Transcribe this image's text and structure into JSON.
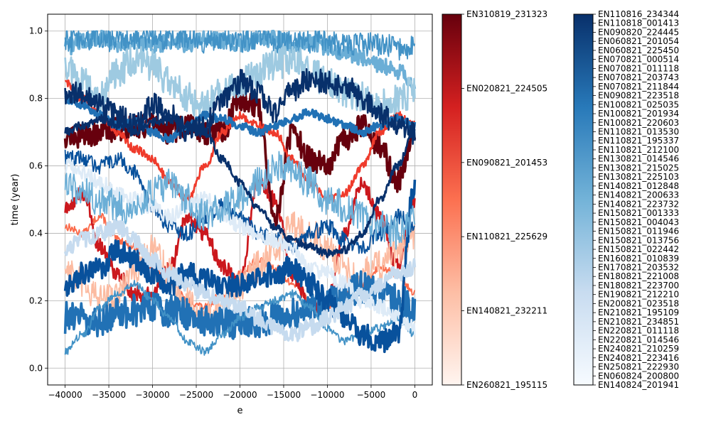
{
  "chart_data": {
    "type": "line",
    "xlabel": "e",
    "ylabel": "time (year)",
    "xlim": [
      -42000,
      2000
    ],
    "ylim": [
      -0.05,
      1.05
    ],
    "x_ticks": [
      -40000,
      -35000,
      -30000,
      -25000,
      -20000,
      -15000,
      -10000,
      -5000,
      0
    ],
    "x_tick_labels": [
      "−40000",
      "−35000",
      "−30000",
      "−25000",
      "−20000",
      "−15000",
      "−10000",
      "−5000",
      "0"
    ],
    "y_ticks": [
      0.0,
      0.2,
      0.4,
      0.6,
      0.8,
      1.0
    ],
    "y_tick_labels": [
      "0.0",
      "0.2",
      "0.4",
      "0.6",
      "0.8",
      "1.0"
    ],
    "grid": true,
    "x_range": [
      -40000,
      0
    ],
    "series": [
      {
        "color": "#fb6a4a",
        "values": [
          0.42,
          0.4,
          0.45,
          0.38,
          0.36,
          0.3,
          0.26,
          0.2,
          0.18,
          0.22,
          0.28,
          0.32,
          0.3,
          0.25,
          0.2,
          0.18,
          0.22,
          0.25,
          0.3,
          0.28,
          0.22
        ]
      },
      {
        "color": "#cb181d",
        "values": [
          0.47,
          0.52,
          0.36,
          0.28,
          0.22,
          0.22,
          0.3,
          0.45,
          0.4,
          0.3,
          0.25,
          0.55,
          0.5,
          0.28,
          0.18,
          0.2,
          0.4,
          0.55,
          0.45,
          0.3,
          0.5
        ]
      },
      {
        "color": "#67000d",
        "values": [
          0.69,
          0.69,
          0.7,
          0.71,
          0.72,
          0.72,
          0.7,
          0.72,
          0.7,
          0.7,
          0.8,
          0.78,
          0.45,
          0.7,
          0.62,
          0.6,
          0.68,
          0.72,
          0.66,
          0.55,
          0.7
        ]
      },
      {
        "color": "#fcbba1",
        "values": [
          0.3,
          0.25,
          0.2,
          0.22,
          0.3,
          0.35,
          0.28,
          0.2,
          0.15,
          0.18,
          0.25,
          0.3,
          0.35,
          0.42,
          0.4,
          0.35,
          0.3,
          0.28,
          0.3,
          0.35,
          0.4
        ]
      },
      {
        "color": "#ef3b2c",
        "values": [
          0.85,
          0.8,
          0.75,
          0.7,
          0.65,
          0.62,
          0.55,
          0.5,
          0.6,
          0.7,
          0.75,
          0.72,
          0.7,
          0.62,
          0.55,
          0.5,
          0.52,
          0.6,
          0.7,
          0.75,
          0.72
        ]
      },
      {
        "color": "#6baed6",
        "values": [
          0.95,
          0.97,
          0.98,
          0.96,
          0.97,
          0.95,
          0.97,
          0.96,
          0.98,
          0.97,
          0.96,
          0.97,
          0.98,
          0.96,
          0.97,
          0.95,
          0.93,
          0.92,
          0.9,
          0.88,
          0.85
        ]
      },
      {
        "color": "#4292c6",
        "values": [
          0.97,
          0.98,
          0.98,
          0.97,
          0.98,
          0.98,
          0.98,
          0.98,
          0.97,
          0.97,
          0.97,
          0.98,
          0.97,
          0.97,
          0.97,
          0.97,
          0.96,
          0.96,
          0.96,
          0.95,
          0.95
        ]
      },
      {
        "color": "#9ecae1",
        "values": [
          0.9,
          0.85,
          0.8,
          0.88,
          0.92,
          0.9,
          0.85,
          0.8,
          0.78,
          0.82,
          0.85,
          0.88,
          0.9,
          0.92,
          0.88,
          0.85,
          0.82,
          0.8,
          0.78,
          0.8,
          0.82
        ]
      },
      {
        "color": "#2171b5",
        "values": [
          0.8,
          0.78,
          0.75,
          0.72,
          0.73,
          0.7,
          0.68,
          0.72,
          0.75,
          0.74,
          0.72,
          0.7,
          0.72,
          0.74,
          0.76,
          0.74,
          0.72,
          0.7,
          0.72,
          0.74,
          0.72
        ]
      },
      {
        "color": "#08519c",
        "values": [
          0.63,
          0.62,
          0.6,
          0.62,
          0.58,
          0.48,
          0.42,
          0.4,
          0.45,
          0.48,
          0.45,
          0.4,
          0.38,
          0.36,
          0.4,
          0.42,
          0.38,
          0.36,
          0.4,
          0.45,
          0.42
        ]
      },
      {
        "color": "#08306b",
        "values": [
          0.8,
          0.82,
          0.78,
          0.75,
          0.72,
          0.78,
          0.75,
          0.7,
          0.72,
          0.8,
          0.85,
          0.82,
          0.76,
          0.82,
          0.86,
          0.85,
          0.84,
          0.8,
          0.75,
          0.72,
          0.7
        ]
      },
      {
        "color": "#2171b5",
        "values": [
          0.15,
          0.15,
          0.14,
          0.16,
          0.17,
          0.18,
          0.17,
          0.16,
          0.14,
          0.14,
          0.13,
          0.14,
          0.15,
          0.16,
          0.18,
          0.2,
          0.22,
          0.24,
          0.22,
          0.2,
          0.18
        ]
      },
      {
        "color": "#4292c6",
        "values": [
          0.05,
          0.1,
          0.18,
          0.22,
          0.25,
          0.2,
          0.15,
          0.08,
          0.05,
          0.1,
          0.15,
          0.18,
          0.2,
          0.22,
          0.18,
          0.12,
          0.08,
          0.1,
          0.12,
          0.15,
          0.1
        ]
      },
      {
        "color": "#deebf7",
        "values": [
          0.6,
          0.58,
          0.55,
          0.52,
          0.5,
          0.48,
          0.45,
          0.48,
          0.5,
          0.46,
          0.42,
          0.4,
          0.38,
          0.35,
          0.3,
          0.28,
          0.25,
          0.2,
          0.18,
          0.15,
          0.12
        ]
      },
      {
        "color": "#08519c",
        "values": [
          0.25,
          0.28,
          0.3,
          0.35,
          0.32,
          0.28,
          0.25,
          0.28,
          0.26,
          0.24,
          0.25,
          0.27,
          0.28,
          0.3,
          0.25,
          0.2,
          0.15,
          0.1,
          0.08,
          0.1,
          0.55
        ]
      },
      {
        "color": "#6baed6",
        "values": [
          0.55,
          0.52,
          0.5,
          0.48,
          0.46,
          0.52,
          0.55,
          0.5,
          0.45,
          0.48,
          0.5,
          0.55,
          0.6,
          0.58,
          0.55,
          0.5,
          0.48,
          0.45,
          0.42,
          0.4,
          0.45
        ]
      },
      {
        "color": "#08306b",
        "values": [
          0.7,
          0.72,
          0.74,
          0.72,
          0.7,
          0.73,
          0.74,
          0.72,
          0.7,
          0.62,
          0.55,
          0.48,
          0.42,
          0.38,
          0.36,
          0.34,
          0.35,
          0.4,
          0.5,
          0.6,
          0.7
        ]
      },
      {
        "color": "#c6dbef",
        "values": [
          0.35,
          0.38,
          0.4,
          0.42,
          0.38,
          0.32,
          0.28,
          0.25,
          0.22,
          0.2,
          0.18,
          0.15,
          0.12,
          0.1,
          0.12,
          0.15,
          0.18,
          0.22,
          0.25,
          0.28,
          0.3
        ]
      }
    ],
    "colorbars": [
      {
        "colormap": "Reds",
        "colors": [
          "#fff5f0",
          "#fdbea5",
          "#fc7050",
          "#d42020",
          "#67000d"
        ],
        "labels": [
          "EN310819_231323",
          "EN020821_224505",
          "EN090821_201453",
          "EN110821_225629",
          "EN140821_232211",
          "EN260821_195115"
        ]
      },
      {
        "colormap": "Blues",
        "colors": [
          "#f7fbff",
          "#c8dcf0",
          "#73b3d8",
          "#2879b9",
          "#08306b"
        ],
        "labels": [
          "EN110816_234344",
          "EN110818_001413",
          "EN090820_224445",
          "EN060821_201054",
          "EN060821_225450",
          "EN070821_000514",
          "EN070821_011118",
          "EN070821_203743",
          "EN070821_211844",
          "EN090821_223518",
          "EN100821_025035",
          "EN100821_201934",
          "EN100821_220603",
          "EN110821_013530",
          "EN110821_195337",
          "EN110821_212100",
          "EN130821_014546",
          "EN130821_215025",
          "EN130821_225103",
          "EN140821_012848",
          "EN140821_200633",
          "EN140821_223732",
          "EN150821_001333",
          "EN150821_004043",
          "EN150821_011946",
          "EN150821_013756",
          "EN150821_022442",
          "EN160821_010839",
          "EN170821_203532",
          "EN180821_221008",
          "EN180821_223700",
          "EN190821_212210",
          "EN200821_023518",
          "EN210821_195109",
          "EN210821_234851",
          "EN220821_011118",
          "EN220821_014546",
          "EN240821_210259",
          "EN240821_223416",
          "EN250821_222930",
          "EN060824_200800",
          "EN140824_201941"
        ]
      }
    ]
  }
}
